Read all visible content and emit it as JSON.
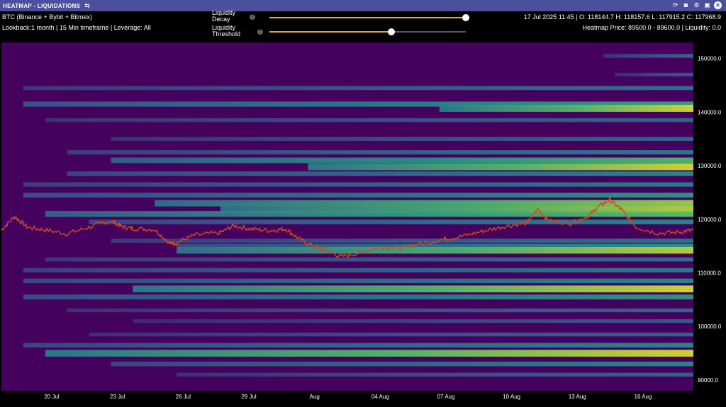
{
  "panel": {
    "title": "HEATMAP - LIQUIDATIONS",
    "settings_icon": "sliders-icon",
    "window_buttons": [
      "refresh-icon",
      "camera-icon",
      "gear-icon",
      "save-icon",
      "close-icon"
    ]
  },
  "header": {
    "exchanges": "BTC (Binance + Bybit + Bitmex)",
    "lookback": "Lookback:1 month | 15 Min timeframe | Leverage: All",
    "ohlc": "17 Jul 2025 11:45 | O: 118144.7 H: 118157.6 L: 117915.2 C: 117968.9",
    "heatmap_price": "Heatmap Price: 89500.0 - 89600.0 | Liquidity: 0.0"
  },
  "controls": {
    "decay": {
      "label": "Liquidity Decay",
      "value": 1.0,
      "color": "#f0a030"
    },
    "threshold": {
      "label": "Liquidity Threshold",
      "value": 0.62,
      "color": "#f0a030"
    }
  },
  "colors": {
    "background": "#44015e",
    "price_line": "#d64a1c",
    "axis_text": "#ffffff"
  },
  "chart_data": {
    "type": "heatmap",
    "x_ticks": [
      "20 Jul",
      "23 Jul",
      "26 Jul",
      "29 Jul",
      "Aug",
      "04 Aug",
      "07 Aug",
      "10 Aug",
      "13 Aug",
      "16 Aug"
    ],
    "y_ticks": [
      "150000.0",
      "140000.0",
      "130000.0",
      "120000.0",
      "110000.0",
      "100000.0",
      "90000.0"
    ],
    "ylim": [
      88000,
      153000
    ],
    "x_range_days": [
      0,
      31.6
    ],
    "x_tick_days": [
      2.3,
      5.3,
      8.3,
      11.3,
      14.3,
      17.3,
      20.3,
      23.3,
      26.3,
      29.3
    ],
    "bands": [
      {
        "price": 150500,
        "intensity": 0.35,
        "start_day": 27.5
      },
      {
        "price": 147000,
        "intensity": 0.3,
        "start_day": 28
      },
      {
        "price": 144500,
        "intensity": 0.4,
        "start_day": 1
      },
      {
        "price": 141500,
        "intensity": 0.6,
        "start_day": 1
      },
      {
        "price": 140700,
        "intensity": 0.95,
        "start_day": 20
      },
      {
        "price": 138500,
        "intensity": 0.35,
        "start_day": 2
      },
      {
        "price": 135000,
        "intensity": 0.35,
        "start_day": 5
      },
      {
        "price": 132500,
        "intensity": 0.45,
        "start_day": 3
      },
      {
        "price": 131000,
        "intensity": 0.7,
        "start_day": 5
      },
      {
        "price": 129800,
        "intensity": 0.95,
        "start_day": 14
      },
      {
        "price": 128500,
        "intensity": 0.5,
        "start_day": 3
      },
      {
        "price": 126500,
        "intensity": 0.45,
        "start_day": 1
      },
      {
        "price": 124500,
        "intensity": 0.55,
        "start_day": 1
      },
      {
        "price": 123000,
        "intensity": 0.85,
        "start_day": 7
      },
      {
        "price": 121800,
        "intensity": 0.9,
        "start_day": 10
      },
      {
        "price": 121000,
        "intensity": 0.75,
        "start_day": 2
      },
      {
        "price": 119500,
        "intensity": 0.5,
        "start_day": 4
      },
      {
        "price": 116000,
        "intensity": 0.4,
        "start_day": 5
      },
      {
        "price": 115000,
        "intensity": 0.55,
        "start_day": 8
      },
      {
        "price": 114200,
        "intensity": 0.9,
        "start_day": 8
      },
      {
        "price": 112500,
        "intensity": 0.4,
        "start_day": 2
      },
      {
        "price": 110500,
        "intensity": 0.45,
        "start_day": 1
      },
      {
        "price": 108500,
        "intensity": 0.5,
        "start_day": 1
      },
      {
        "price": 107000,
        "intensity": 0.95,
        "start_day": 6
      },
      {
        "price": 105500,
        "intensity": 0.55,
        "start_day": 1
      },
      {
        "price": 103000,
        "intensity": 0.35,
        "start_day": 3
      },
      {
        "price": 101000,
        "intensity": 0.3,
        "start_day": 6
      },
      {
        "price": 98500,
        "intensity": 0.35,
        "start_day": 4
      },
      {
        "price": 96500,
        "intensity": 0.5,
        "start_day": 1
      },
      {
        "price": 95000,
        "intensity": 0.95,
        "start_day": 2
      },
      {
        "price": 93000,
        "intensity": 0.5,
        "start_day": 5
      },
      {
        "price": 91000,
        "intensity": 0.35,
        "start_day": 8
      }
    ],
    "price_series": {
      "days": [
        0,
        0.6,
        1.2,
        2,
        3,
        4,
        5,
        5.5,
        6,
        7,
        7.7,
        8,
        8.8,
        10,
        10.6,
        11.4,
        12.3,
        13,
        13.6,
        14.3,
        14.8,
        15.5,
        16.4,
        17.3,
        18.2,
        19,
        20.2,
        21,
        22,
        23,
        24,
        24.5,
        25,
        26,
        26.8,
        27.3,
        27.8,
        28.3,
        29,
        30,
        31,
        31.6
      ],
      "values": [
        118000,
        120500,
        118500,
        118000,
        117300,
        118500,
        119700,
        118600,
        118300,
        118100,
        115500,
        115600,
        117000,
        117500,
        118800,
        118200,
        117900,
        118200,
        116300,
        114800,
        114300,
        113000,
        113800,
        114800,
        114600,
        115300,
        116300,
        116800,
        117800,
        118700,
        119300,
        121900,
        119700,
        119300,
        120600,
        122500,
        123600,
        121800,
        118500,
        117400,
        117600,
        118000
      ]
    }
  }
}
